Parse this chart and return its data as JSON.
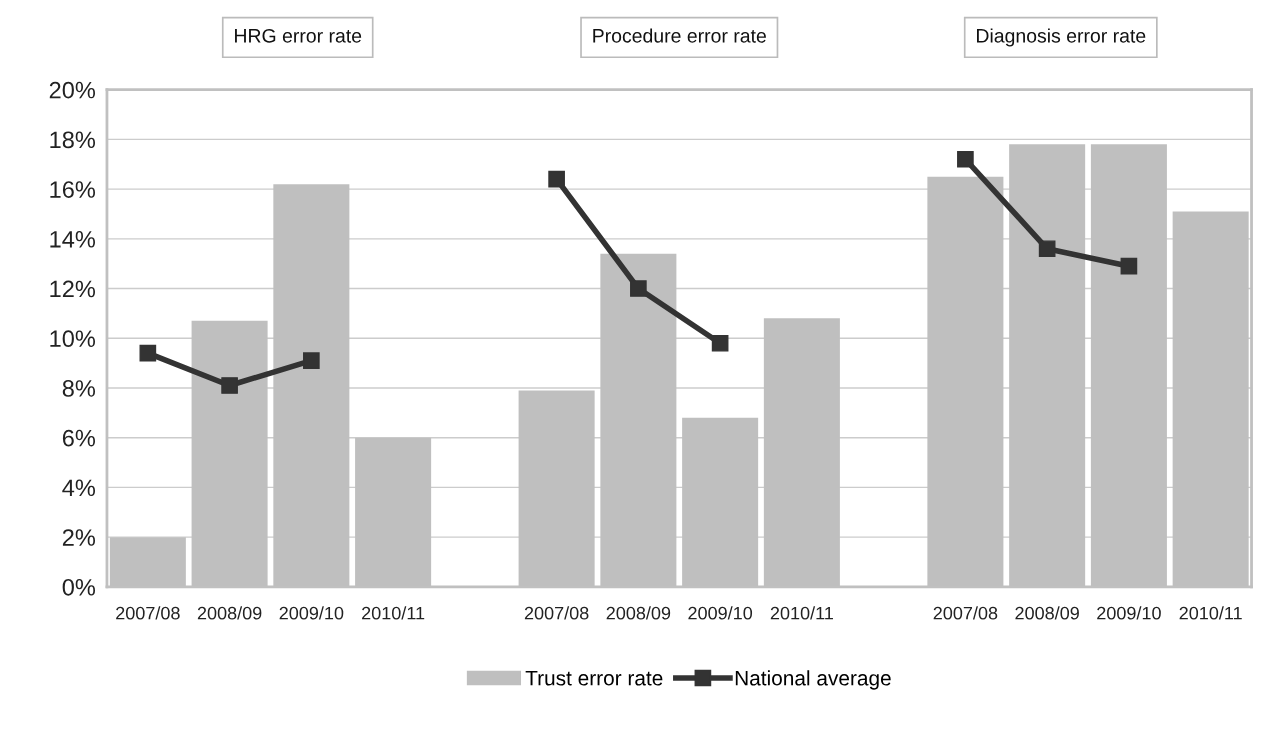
{
  "chart_data": {
    "type": "bar",
    "categories": [
      "2007/08",
      "2008/09",
      "2009/10",
      "2010/11",
      null,
      "2007/08",
      "2008/09",
      "2009/10",
      "2010/11",
      null,
      "2007/08",
      "2008/09",
      "2009/10",
      "2010/11"
    ],
    "series": [
      {
        "name": "Trust error rate",
        "color": "#bfbfbf",
        "values": [
          2.0,
          10.7,
          16.2,
          6.0,
          null,
          7.9,
          13.4,
          6.8,
          10.8,
          null,
          16.5,
          17.8,
          17.8,
          15.1
        ]
      },
      {
        "name": "National average",
        "type": "line",
        "color": "#333333",
        "marker": "square",
        "line_style": "solid",
        "values": [
          9.4,
          8.1,
          9.1,
          null,
          null,
          16.4,
          12.0,
          9.8,
          null,
          null,
          17.2,
          13.6,
          12.9,
          null
        ]
      }
    ],
    "annotations": [
      "HRG error rate",
      "Procedure error rate",
      "Diagnosis error rate"
    ],
    "ylim": [
      0,
      20
    ],
    "yticks": [
      {
        "value": 0,
        "label": "0%"
      },
      {
        "value": 2,
        "label": "2%"
      },
      {
        "value": 4,
        "label": "4%"
      },
      {
        "value": 6,
        "label": "6%"
      },
      {
        "value": 8,
        "label": "8%"
      },
      {
        "value": 10,
        "label": "10%"
      },
      {
        "value": 12,
        "label": "12%"
      },
      {
        "value": 14,
        "label": "14%"
      },
      {
        "value": 16,
        "label": "16%"
      },
      {
        "value": 18,
        "label": "18%"
      },
      {
        "value": 20,
        "label": "20%"
      }
    ],
    "grid": "y",
    "legend": "bottom"
  }
}
